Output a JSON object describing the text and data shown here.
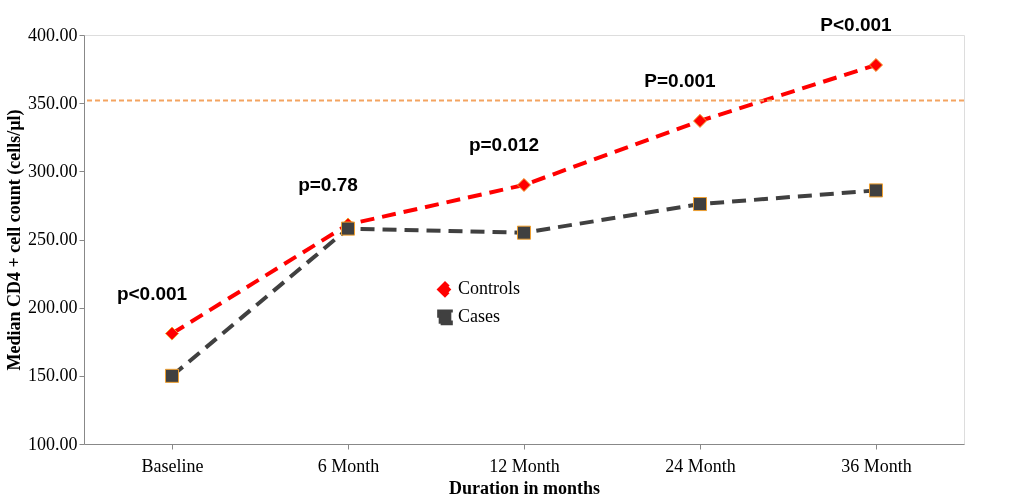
{
  "chart_data": {
    "type": "line",
    "xlabel": "Duration in months",
    "ylabel": "Median CD4 + cell count (cells/µl)",
    "categories": [
      "Baseline",
      "6 Month",
      "12 Month",
      "24 Month",
      "36 Month"
    ],
    "series": [
      {
        "name": "Controls",
        "color": "#ff0000",
        "marker": "diamond",
        "line_style": "dashed",
        "values": [
          181,
          261,
          290,
          337,
          378
        ]
      },
      {
        "name": "Cases",
        "color": "#404040",
        "marker": "square",
        "line_style": "dashed",
        "values": [
          150,
          258,
          255,
          276,
          286
        ]
      }
    ],
    "ylim": [
      100,
      400
    ],
    "yticks": [
      {
        "value": 100,
        "label": "100.00"
      },
      {
        "value": 150,
        "label": "150.00"
      },
      {
        "value": 200,
        "label": "200.00"
      },
      {
        "value": 250,
        "label": "250.00"
      },
      {
        "value": 300,
        "label": "300.00"
      },
      {
        "value": 350,
        "label": "350.00"
      },
      {
        "value": 400,
        "label": "400.00"
      }
    ],
    "ref_lines": [
      {
        "axis": "y",
        "value": 352,
        "color": "#f4a460",
        "line_style": "dotted"
      }
    ],
    "annotations": [
      "p<0.001",
      "p=0.78",
      "p=0.012",
      "P=0.001",
      "P<0.001"
    ],
    "grid": false,
    "legend": "center"
  }
}
